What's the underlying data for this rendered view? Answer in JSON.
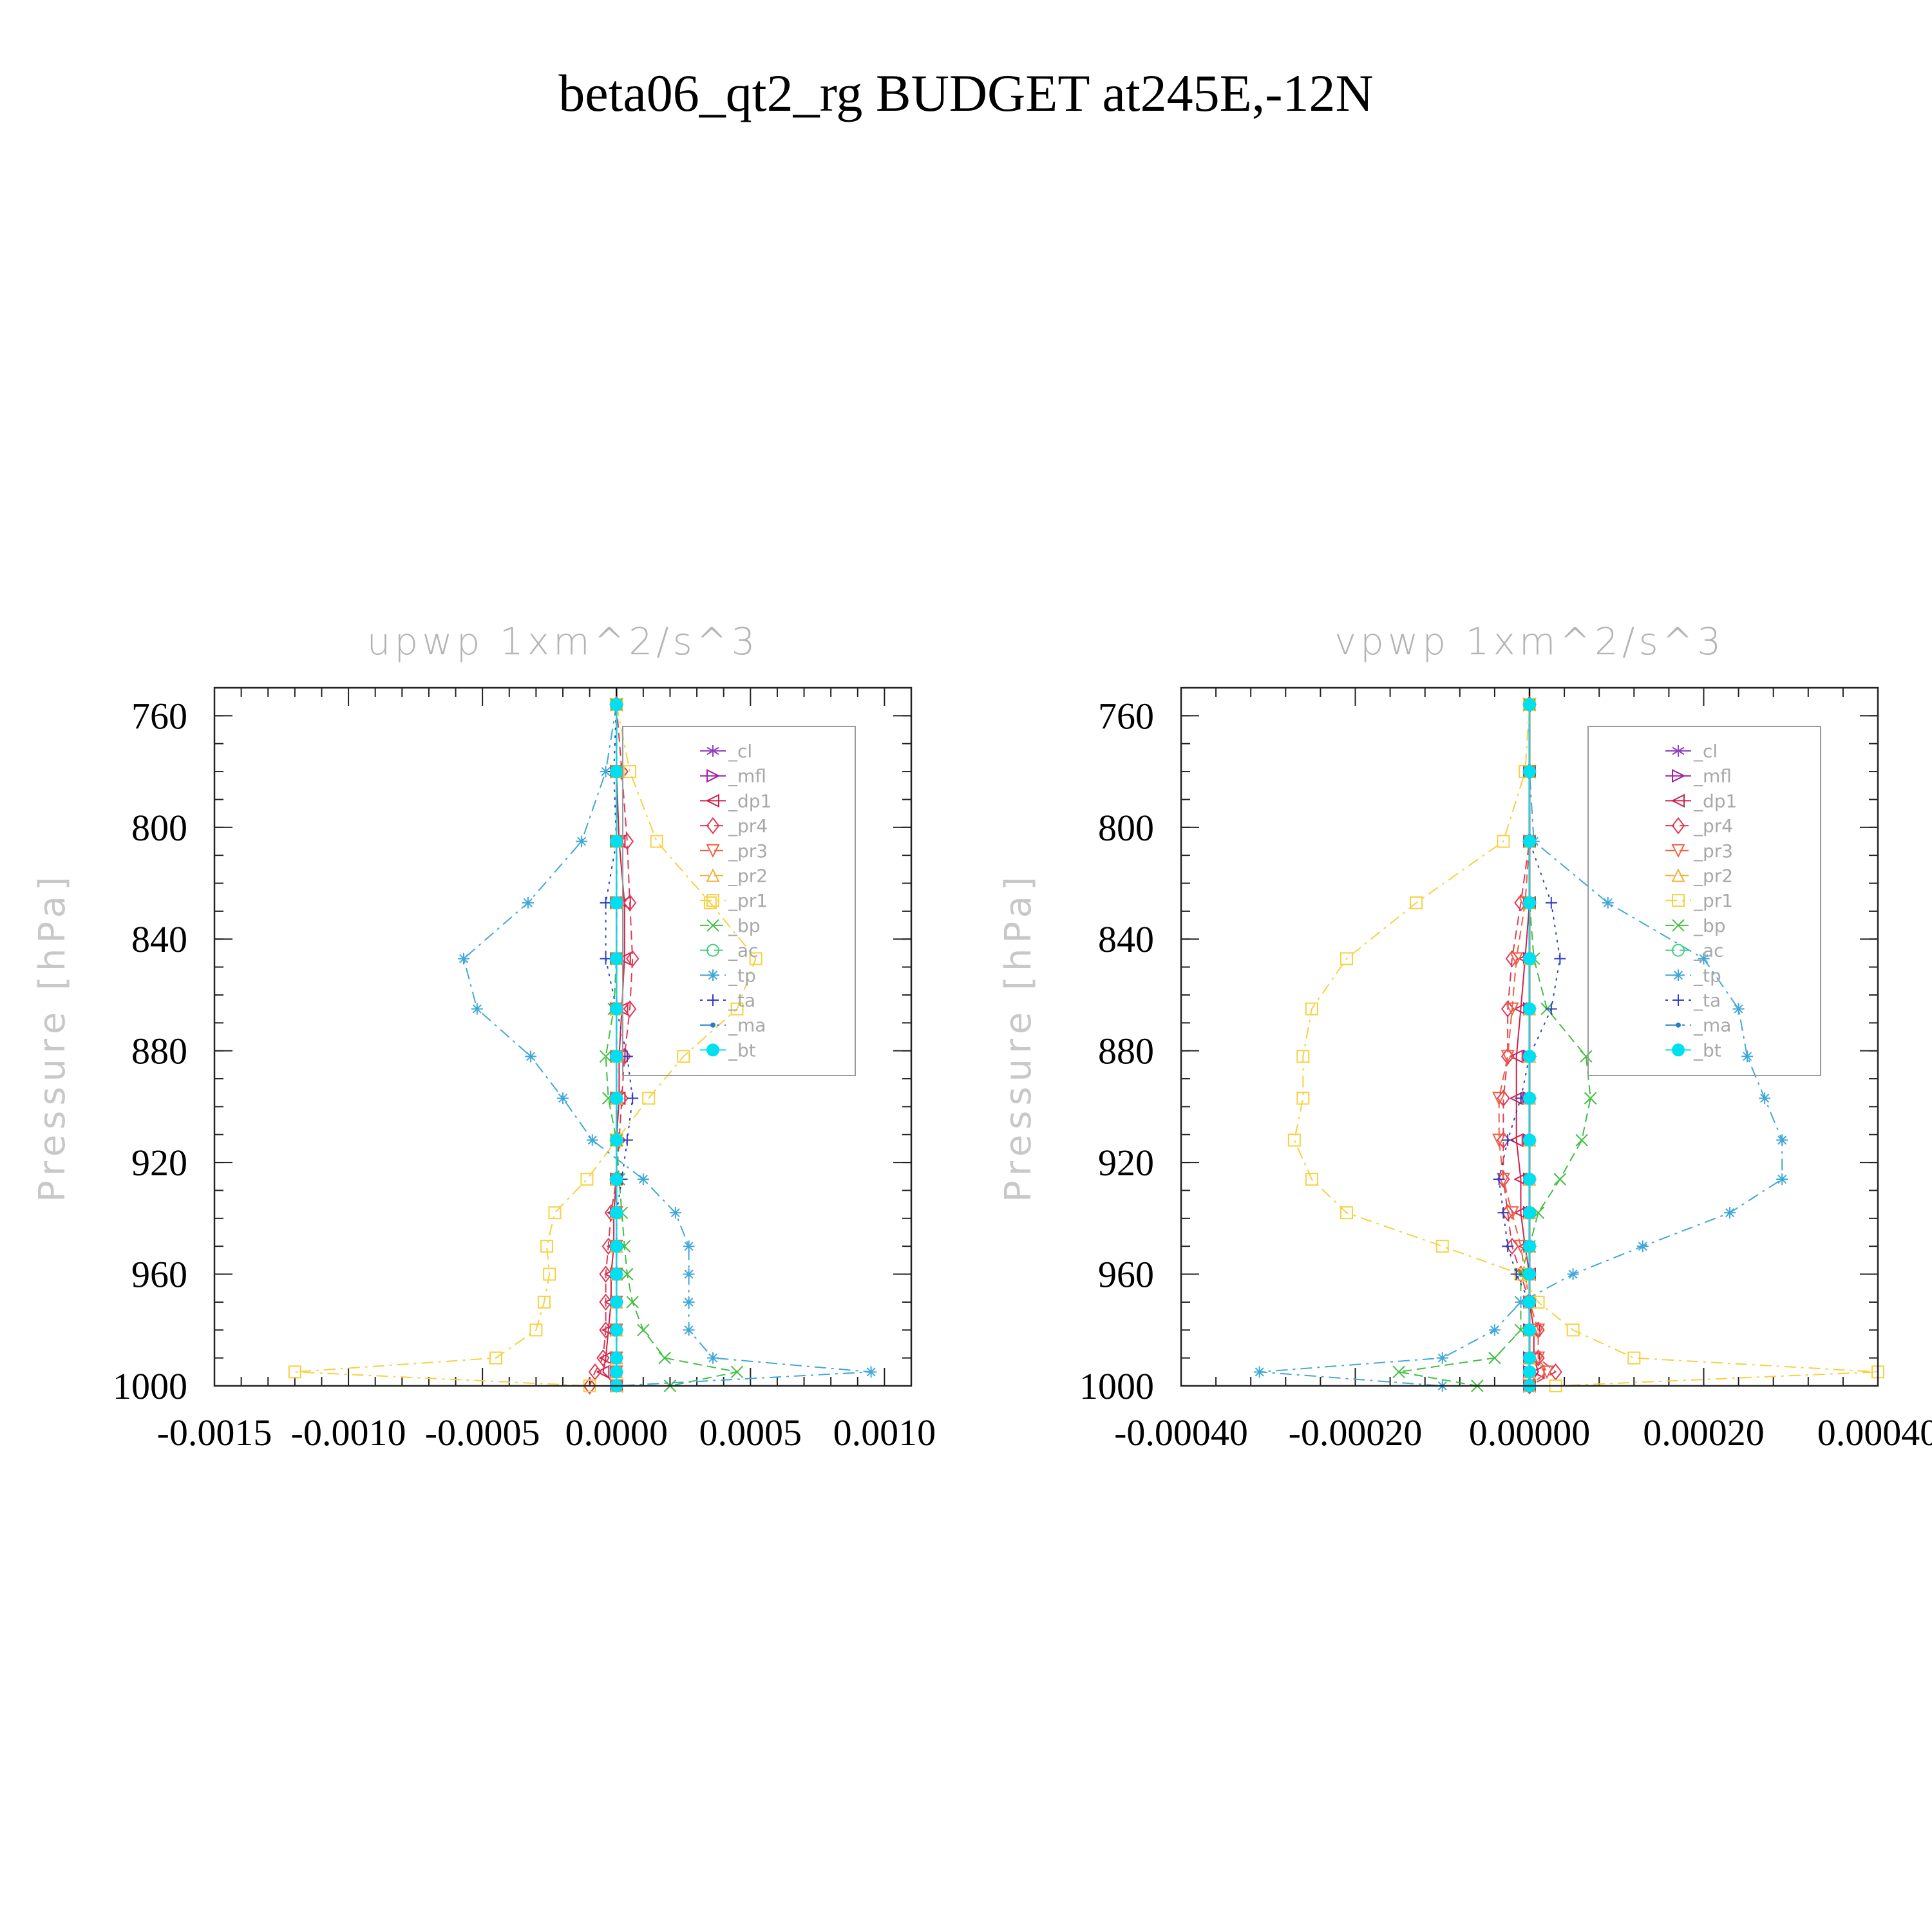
{
  "title": "beta06_qt2_rg  BUDGET at245E,-12N",
  "chart_data": [
    {
      "type": "line",
      "title": "upwp    1xm^2/s^3",
      "xlabel": "",
      "ylabel": "Pressure  [hPa]",
      "xlim": [
        -0.0015,
        0.0011
      ],
      "ylim": [
        1000,
        750
      ],
      "xticks": [
        -0.0015,
        -0.001,
        -0.0005,
        0.0,
        0.0005,
        0.001
      ],
      "xtick_labels": [
        "-0.0015",
        "-0.0010",
        "-0.0005",
        "0.0000",
        "0.0005",
        "0.0010"
      ],
      "yticks": [
        760,
        800,
        840,
        880,
        920,
        960,
        1000
      ],
      "ytick_labels": [
        "760",
        "800",
        "840",
        "880",
        "920",
        "960",
        "1000"
      ],
      "legend_position": "top-right",
      "y": [
        756,
        780,
        805,
        827,
        847,
        865,
        882,
        897,
        912,
        926,
        938,
        950,
        960,
        970,
        980,
        990,
        995,
        1000
      ],
      "series": [
        {
          "name": "_cl",
          "color": "#9040c0",
          "marker": "star",
          "dash": "solid",
          "values": [
            0,
            0,
            0,
            0,
            0,
            0,
            0,
            0,
            0,
            0,
            0,
            0,
            0,
            0,
            0,
            0,
            0,
            0
          ]
        },
        {
          "name": "_mfl",
          "color": "#a020a0",
          "marker": "tri-right",
          "dash": "solid",
          "values": [
            0,
            0,
            0,
            0,
            0,
            0,
            0,
            0,
            0,
            0,
            0,
            0,
            0,
            0,
            0,
            0,
            0,
            0
          ]
        },
        {
          "name": "_dp1",
          "color": "#d0204a",
          "marker": "tri-left",
          "dash": "solid",
          "values": [
            0,
            0,
            1e-05,
            3e-05,
            3e-05,
            2e-05,
            1e-05,
            1e-05,
            0,
            0,
            -1e-05,
            -1e-05,
            -2e-05,
            -2e-05,
            -3e-05,
            -4e-05,
            -5e-05,
            0
          ]
        },
        {
          "name": "_pr4",
          "color": "#e03a55",
          "marker": "diamond",
          "dash": "dash",
          "values": [
            0,
            2e-05,
            4e-05,
            5e-05,
            6e-05,
            5e-05,
            3e-05,
            2e-05,
            1e-05,
            0,
            -2e-05,
            -3e-05,
            -4e-05,
            -4e-05,
            -4e-05,
            -5e-05,
            -8e-05,
            -0.0001
          ]
        },
        {
          "name": "_pr3",
          "color": "#f06040",
          "marker": "tri-down",
          "dash": "dash",
          "values": [
            0,
            0,
            0,
            0,
            0,
            0,
            0,
            0,
            0,
            0,
            0,
            0,
            0,
            0,
            0,
            0,
            0,
            0
          ]
        },
        {
          "name": "_pr2",
          "color": "#f0b040",
          "marker": "tri-up",
          "dash": "dash",
          "values": [
            0,
            0,
            0,
            0,
            0,
            0,
            0,
            0,
            0,
            0,
            0,
            0,
            0,
            0,
            0,
            0,
            0,
            0
          ]
        },
        {
          "name": "_pr1",
          "color": "#f8d040",
          "marker": "square",
          "dash": "dashdot",
          "values": [
            0,
            5e-05,
            0.00015,
            0.00035,
            0.00052,
            0.00045,
            0.00025,
            0.00012,
            0,
            -0.00011,
            -0.00023,
            -0.00026,
            -0.00025,
            -0.00027,
            -0.0003,
            -0.00045,
            -0.0012,
            -0.0001
          ]
        },
        {
          "name": "_bp",
          "color": "#40c040",
          "marker": "x",
          "dash": "dash",
          "values": [
            0,
            0,
            0,
            0,
            0,
            -1e-05,
            -4e-05,
            -3e-05,
            0,
            1e-05,
            2e-05,
            3e-05,
            4e-05,
            6e-05,
            0.0001,
            0.00018,
            0.00045,
            0.0002
          ]
        },
        {
          "name": "_ac",
          "color": "#40d080",
          "marker": "circle",
          "dash": "dash",
          "values": [
            0,
            0,
            0,
            0,
            0,
            0,
            0,
            0,
            0,
            0,
            0,
            0,
            0,
            0,
            0,
            0,
            0,
            0
          ]
        },
        {
          "name": "_tp",
          "color": "#40a8d8",
          "marker": "asterisk",
          "dash": "dashdot",
          "values": [
            0,
            -4e-05,
            -0.00013,
            -0.00033,
            -0.00057,
            -0.00052,
            -0.00032,
            -0.0002,
            -9e-05,
            0.0001,
            0.00022,
            0.00027,
            0.00027,
            0.00027,
            0.00027,
            0.00036,
            0.00095,
            0
          ]
        },
        {
          "name": "_ta",
          "color": "#3040c0",
          "marker": "plus",
          "dash": "dot",
          "values": [
            0,
            -1e-05,
            0,
            -4e-05,
            -4e-05,
            0,
            4e-05,
            6e-05,
            4e-05,
            2e-05,
            0,
            0,
            0,
            0,
            0,
            0,
            0,
            0
          ]
        },
        {
          "name": "_ma",
          "color": "#2080c0",
          "marker": "dot",
          "dash": "dashdot",
          "values": [
            0,
            0,
            0,
            0,
            0,
            0,
            0,
            0,
            0,
            0,
            0,
            0,
            0,
            0,
            0,
            0,
            0,
            0
          ]
        },
        {
          "name": "_bt",
          "color": "#00e0f0",
          "marker": "filled-circle",
          "dash": "solid",
          "values": [
            0,
            0,
            0,
            0,
            0,
            0,
            0,
            0,
            0,
            0,
            0,
            0,
            0,
            0,
            0,
            0,
            0,
            0
          ]
        }
      ]
    },
    {
      "type": "line",
      "title": "vpwp    1xm^2/s^3",
      "xlabel": "",
      "ylabel": "Pressure  [hPa]",
      "xlim": [
        -0.0004,
        0.0004
      ],
      "ylim": [
        1000,
        750
      ],
      "xticks": [
        -0.0004,
        -0.0002,
        0.0,
        0.0002,
        0.0004
      ],
      "xtick_labels": [
        "-0.00040",
        "-0.00020",
        "0.00000",
        "0.00020",
        "0.00040"
      ],
      "yticks": [
        760,
        800,
        840,
        880,
        920,
        960,
        1000
      ],
      "ytick_labels": [
        "760",
        "800",
        "840",
        "880",
        "920",
        "960",
        "1000"
      ],
      "legend_position": "top-right",
      "y": [
        756,
        780,
        805,
        827,
        847,
        865,
        882,
        897,
        912,
        926,
        938,
        950,
        960,
        970,
        980,
        990,
        995,
        1000
      ],
      "series": [
        {
          "name": "_cl",
          "color": "#9040c0",
          "marker": "star",
          "dash": "solid",
          "values": [
            0,
            0,
            0,
            0,
            0,
            0,
            0,
            0,
            0,
            0,
            0,
            0,
            0,
            0,
            0,
            0,
            0,
            0
          ]
        },
        {
          "name": "_mfl",
          "color": "#a020a0",
          "marker": "tri-right",
          "dash": "solid",
          "values": [
            0,
            0,
            0,
            0,
            0,
            0,
            0,
            0,
            0,
            0,
            0,
            0,
            0,
            0,
            0,
            0,
            0,
            0
          ]
        },
        {
          "name": "_dp1",
          "color": "#d0204a",
          "marker": "tri-left",
          "dash": "solid",
          "values": [
            0,
            0,
            0,
            0,
            -5e-06,
            -1e-05,
            -1.5e-05,
            -1.5e-05,
            -1.5e-05,
            -1e-05,
            -1e-05,
            -5e-06,
            0,
            0,
            5e-06,
            5e-06,
            1e-05,
            0
          ]
        },
        {
          "name": "_pr4",
          "color": "#e03a55",
          "marker": "diamond",
          "dash": "dash",
          "values": [
            0,
            0,
            0,
            -1e-05,
            -2e-05,
            -2.5e-05,
            -2.5e-05,
            -3e-05,
            -3e-05,
            -3e-05,
            -2.5e-05,
            -2e-05,
            -1e-05,
            0,
            1e-05,
            1e-05,
            3e-05,
            0
          ]
        },
        {
          "name": "_pr3",
          "color": "#f06040",
          "marker": "tri-down",
          "dash": "dash",
          "values": [
            0,
            0,
            0,
            -5e-06,
            -1.5e-05,
            -2e-05,
            -2.5e-05,
            -3.5e-05,
            -3.5e-05,
            -3e-05,
            -2e-05,
            -1e-05,
            -5e-06,
            0,
            1e-05,
            1e-05,
            2e-05,
            0
          ]
        },
        {
          "name": "_pr2",
          "color": "#f0b040",
          "marker": "tri-up",
          "dash": "dash",
          "values": [
            0,
            0,
            0,
            0,
            0,
            0,
            0,
            0,
            0,
            0,
            0,
            0,
            0,
            0,
            0,
            0,
            0,
            0
          ]
        },
        {
          "name": "_pr1",
          "color": "#f8d040",
          "marker": "square",
          "dash": "dashdot",
          "values": [
            0,
            -5e-06,
            -3e-05,
            -0.00013,
            -0.00021,
            -0.00025,
            -0.00026,
            -0.00026,
            -0.00027,
            -0.00025,
            -0.00021,
            -0.0001,
            -1e-05,
            1e-05,
            5e-05,
            0.00012,
            0.0004,
            3e-05
          ]
        },
        {
          "name": "_bp",
          "color": "#40c040",
          "marker": "x",
          "dash": "dash",
          "values": [
            0,
            0,
            0,
            0,
            5e-06,
            2e-05,
            6.5e-05,
            7e-05,
            6e-05,
            3.5e-05,
            1e-05,
            0,
            -1e-05,
            -1e-05,
            -1e-05,
            -4e-05,
            -0.00015,
            -6e-05
          ]
        },
        {
          "name": "_ac",
          "color": "#40d080",
          "marker": "circle",
          "dash": "dash",
          "values": [
            0,
            0,
            0,
            0,
            0,
            0,
            0,
            0,
            0,
            0,
            0,
            0,
            0,
            0,
            0,
            0,
            0,
            0
          ]
        },
        {
          "name": "_tp",
          "color": "#40a8d8",
          "marker": "asterisk",
          "dash": "dashdot",
          "values": [
            0,
            0,
            5e-06,
            9e-05,
            0.0002,
            0.00024,
            0.00025,
            0.00027,
            0.00029,
            0.00029,
            0.00023,
            0.00013,
            5e-05,
            -1e-05,
            -4e-05,
            -0.0001,
            -0.00031,
            -0.0001
          ]
        },
        {
          "name": "_ta",
          "color": "#3040c0",
          "marker": "plus",
          "dash": "dot",
          "values": [
            0,
            0,
            0,
            2.5e-05,
            3.5e-05,
            2.5e-05,
            0,
            -1e-05,
            -2.5e-05,
            -3.5e-05,
            -3e-05,
            -2.5e-05,
            -1.5e-05,
            0,
            0,
            0,
            0,
            0
          ]
        },
        {
          "name": "_ma",
          "color": "#2080c0",
          "marker": "dot",
          "dash": "dashdot",
          "values": [
            0,
            0,
            0,
            0,
            0,
            0,
            0,
            0,
            0,
            0,
            0,
            0,
            0,
            0,
            0,
            0,
            0,
            0
          ]
        },
        {
          "name": "_bt",
          "color": "#00e0f0",
          "marker": "filled-circle",
          "dash": "solid",
          "values": [
            0,
            0,
            0,
            0,
            0,
            0,
            0,
            0,
            0,
            0,
            0,
            0,
            0,
            0,
            0,
            0,
            0,
            0
          ]
        }
      ]
    }
  ]
}
